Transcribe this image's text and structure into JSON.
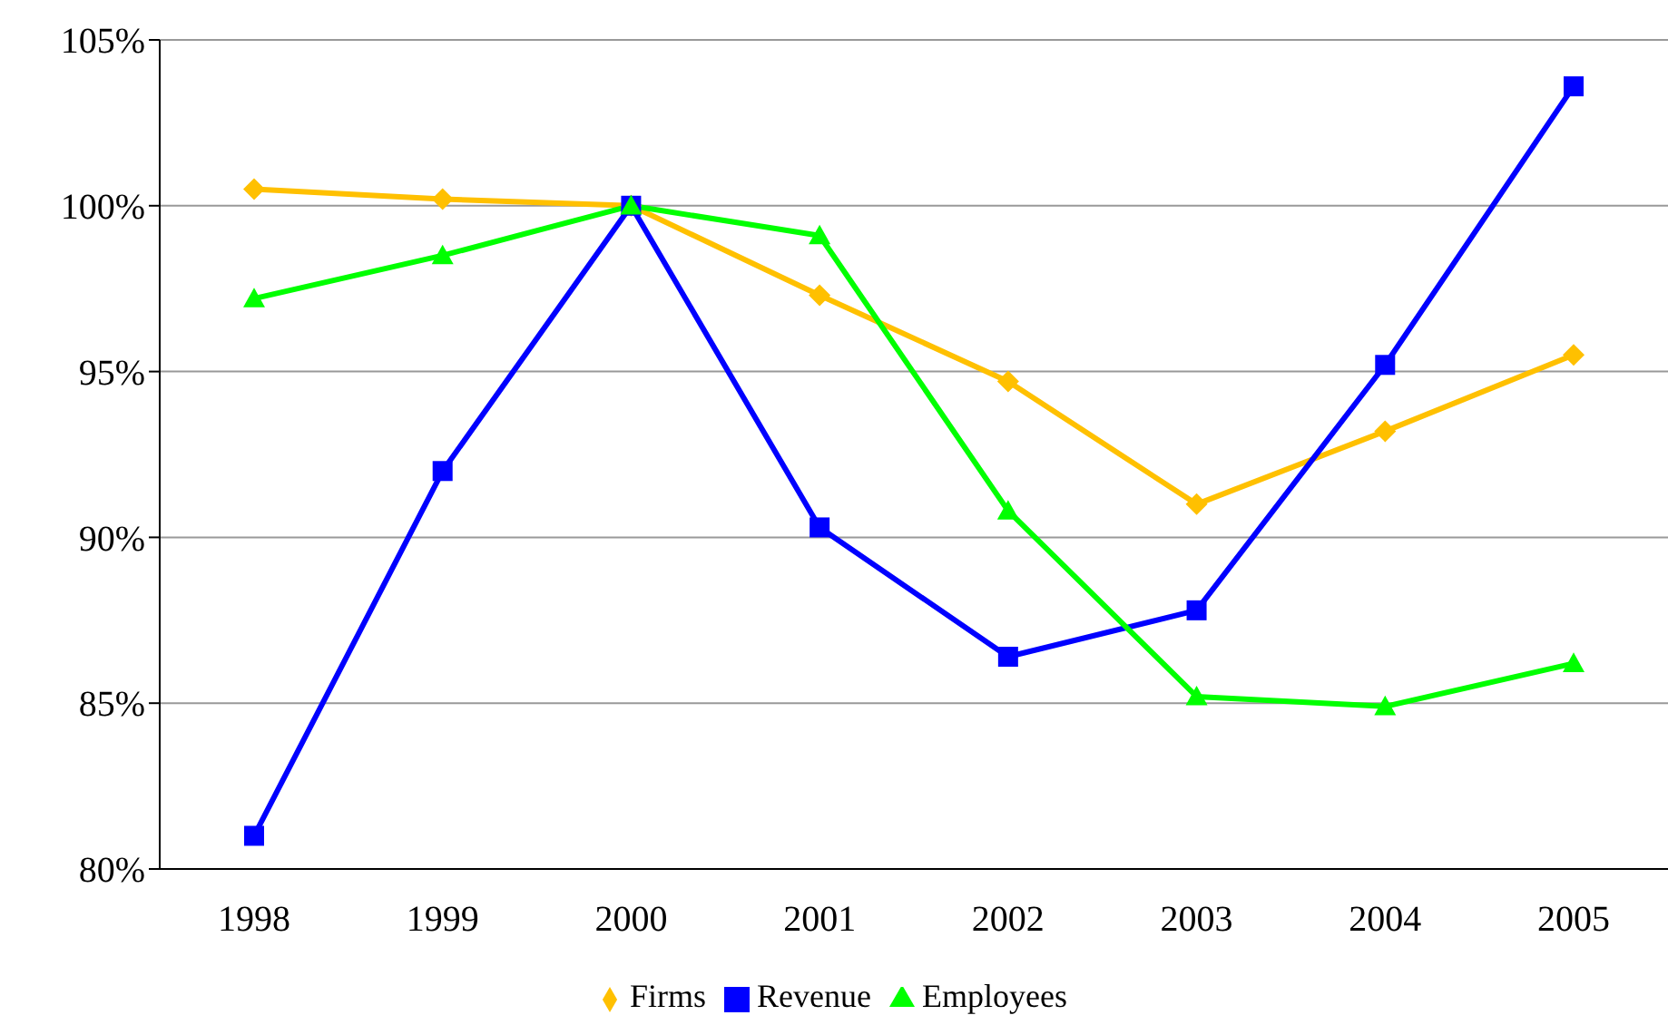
{
  "chart_data": {
    "type": "line",
    "categories": [
      "1998",
      "1999",
      "2000",
      "2001",
      "2002",
      "2003",
      "2004",
      "2005"
    ],
    "series": [
      {
        "name": "Firms",
        "color": "#ffc000",
        "marker": "diamond",
        "values": [
          100.5,
          100.2,
          100,
          97.3,
          94.7,
          91,
          93.2,
          95.5
        ]
      },
      {
        "name": "Revenue",
        "color": "#0000ff",
        "marker": "square",
        "values": [
          81,
          92,
          100,
          90.3,
          86.4,
          87.8,
          95.2,
          103.6
        ]
      },
      {
        "name": "Employees",
        "color": "#00ff00",
        "marker": "triangle",
        "values": [
          97.2,
          98.5,
          100,
          99.1,
          90.8,
          85.2,
          84.9,
          86.2
        ]
      }
    ],
    "ylim": [
      80,
      105
    ],
    "yticks": [
      {
        "value": 80,
        "label": "80%"
      },
      {
        "value": 85,
        "label": "85%"
      },
      {
        "value": 90,
        "label": "90%"
      },
      {
        "value": 95,
        "label": "95%"
      },
      {
        "value": 100,
        "label": "100%"
      },
      {
        "value": 105,
        "label": "105%"
      }
    ],
    "grid": "y",
    "legend": "bottom",
    "line_style": "solid"
  }
}
